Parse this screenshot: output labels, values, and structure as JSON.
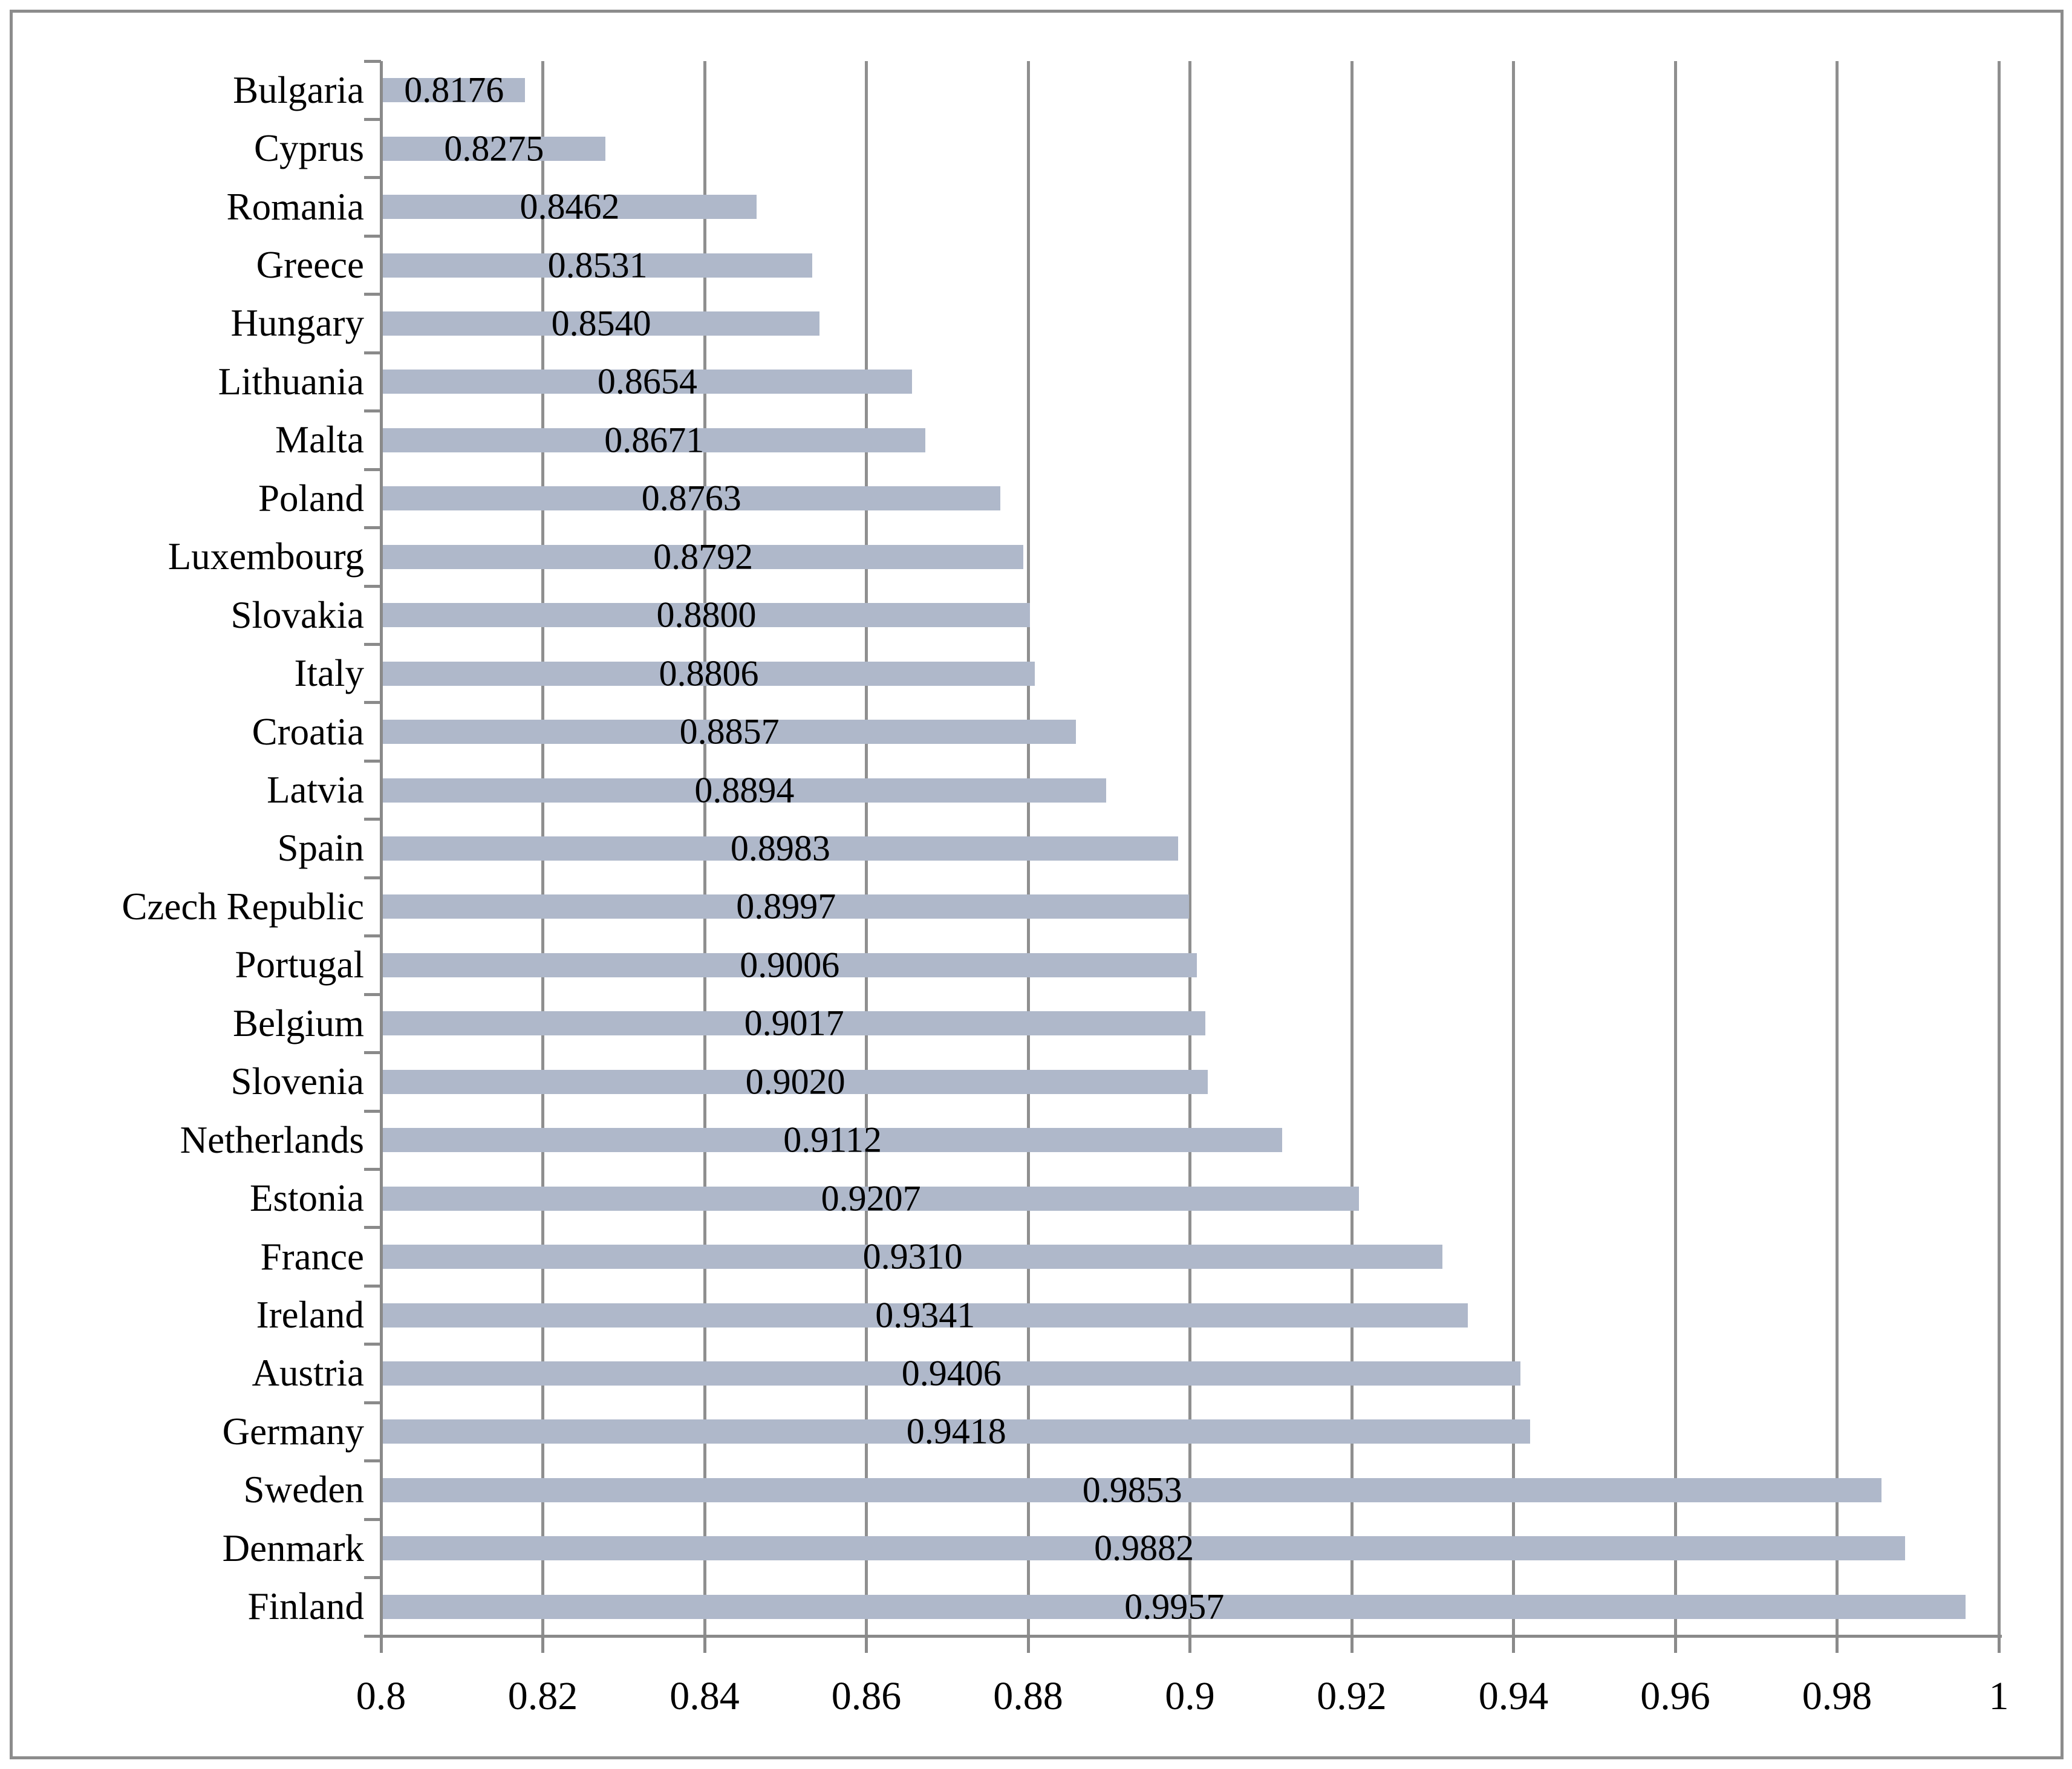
{
  "chart_data": {
    "type": "bar",
    "orientation": "horizontal",
    "title": "",
    "xlabel": "",
    "ylabel": "",
    "categories": [
      "Bulgaria",
      "Cyprus",
      "Romania",
      "Greece",
      "Hungary",
      "Lithuania",
      "Malta",
      "Poland",
      "Luxembourg",
      "Slovakia",
      "Italy",
      "Croatia",
      "Latvia",
      "Spain",
      "Czech Republic",
      "Portugal",
      "Belgium",
      "Slovenia",
      "Netherlands",
      "Estonia",
      "France",
      "Ireland",
      "Austria",
      "Germany",
      "Sweden",
      "Denmark",
      "Finland"
    ],
    "values": [
      0.8176,
      0.8275,
      0.8462,
      0.8531,
      0.854,
      0.8654,
      0.8671,
      0.8763,
      0.8792,
      0.88,
      0.8806,
      0.8857,
      0.8894,
      0.8983,
      0.8997,
      0.9006,
      0.9017,
      0.902,
      0.9112,
      0.9207,
      0.931,
      0.9341,
      0.9406,
      0.9418,
      0.9853,
      0.9882,
      0.9957
    ],
    "value_labels": [
      "0.8176",
      "0.8275",
      "0.8462",
      "0.8531",
      "0.8540",
      "0.8654",
      "0.8671",
      "0.8763",
      "0.8792",
      "0.8800",
      "0.8806",
      "0.8857",
      "0.8894",
      "0.8983",
      "0.8997",
      "0.9006",
      "0.9017",
      "0.9020",
      "0.9112",
      "0.9207",
      "0.9310",
      "0.9341",
      "0.9406",
      "0.9418",
      "0.9853",
      "0.9882",
      "0.9957"
    ],
    "data_label_position": "center-inside-bar",
    "xlim": [
      0.8,
      1.0
    ],
    "xtick_labels": [
      "0.8",
      "0.82",
      "0.84",
      "0.86",
      "0.88",
      "0.9",
      "0.92",
      "0.94",
      "0.96",
      "0.98",
      "1"
    ],
    "xtick_values": [
      0.8,
      0.82,
      0.84,
      0.86,
      0.88,
      0.9,
      0.92,
      0.94,
      0.96,
      0.98,
      1.0
    ],
    "grid": "vertical-only",
    "legend": "none",
    "colors": {
      "bar_fill": "#afb8ca",
      "gridline": "#8f8f8f",
      "axis_line": "#8a8a8a",
      "tick_mark": "#8a8a8a",
      "text": "#000000",
      "outer_border": "#8c8c8c",
      "background": "#ffffff"
    }
  }
}
